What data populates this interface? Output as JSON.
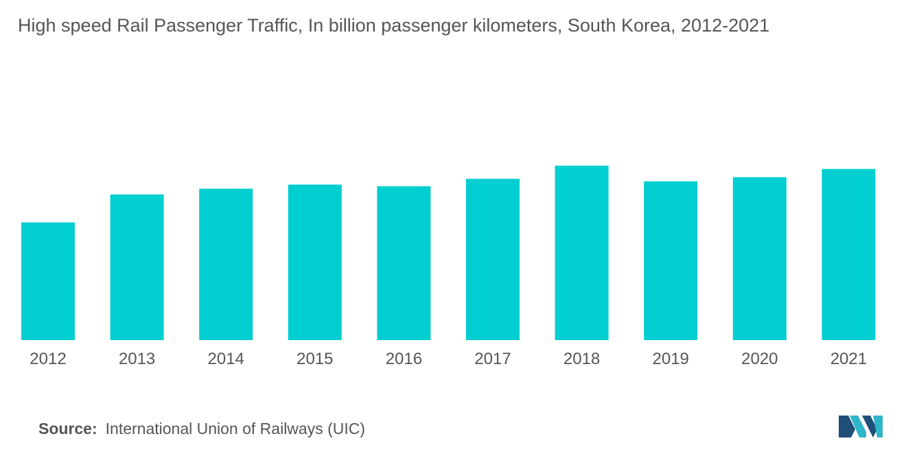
{
  "chart_data": {
    "type": "bar",
    "title": "High speed Rail Passenger Traffic, In billion passenger kilometers, South Korea, 2012-2021",
    "categories": [
      "2012",
      "2013",
      "2014",
      "2015",
      "2016",
      "2017",
      "2018",
      "2019",
      "2020",
      "2021"
    ],
    "values": [
      14.3,
      17.7,
      18.4,
      18.9,
      18.7,
      19.6,
      21.2,
      19.3,
      19.8,
      20.8
    ],
    "ylim": [
      0,
      30
    ],
    "xlabel": "",
    "ylabel": "",
    "grid": false,
    "legend": "none",
    "bar_color": "#00CED1"
  },
  "source": {
    "label": "Source:",
    "text": "International Union of Railways (UIC)"
  },
  "logo": {
    "icon": "mordor-intelligence-logo-icon",
    "colors": [
      "#1F4E79",
      "#2FB5C8"
    ]
  }
}
